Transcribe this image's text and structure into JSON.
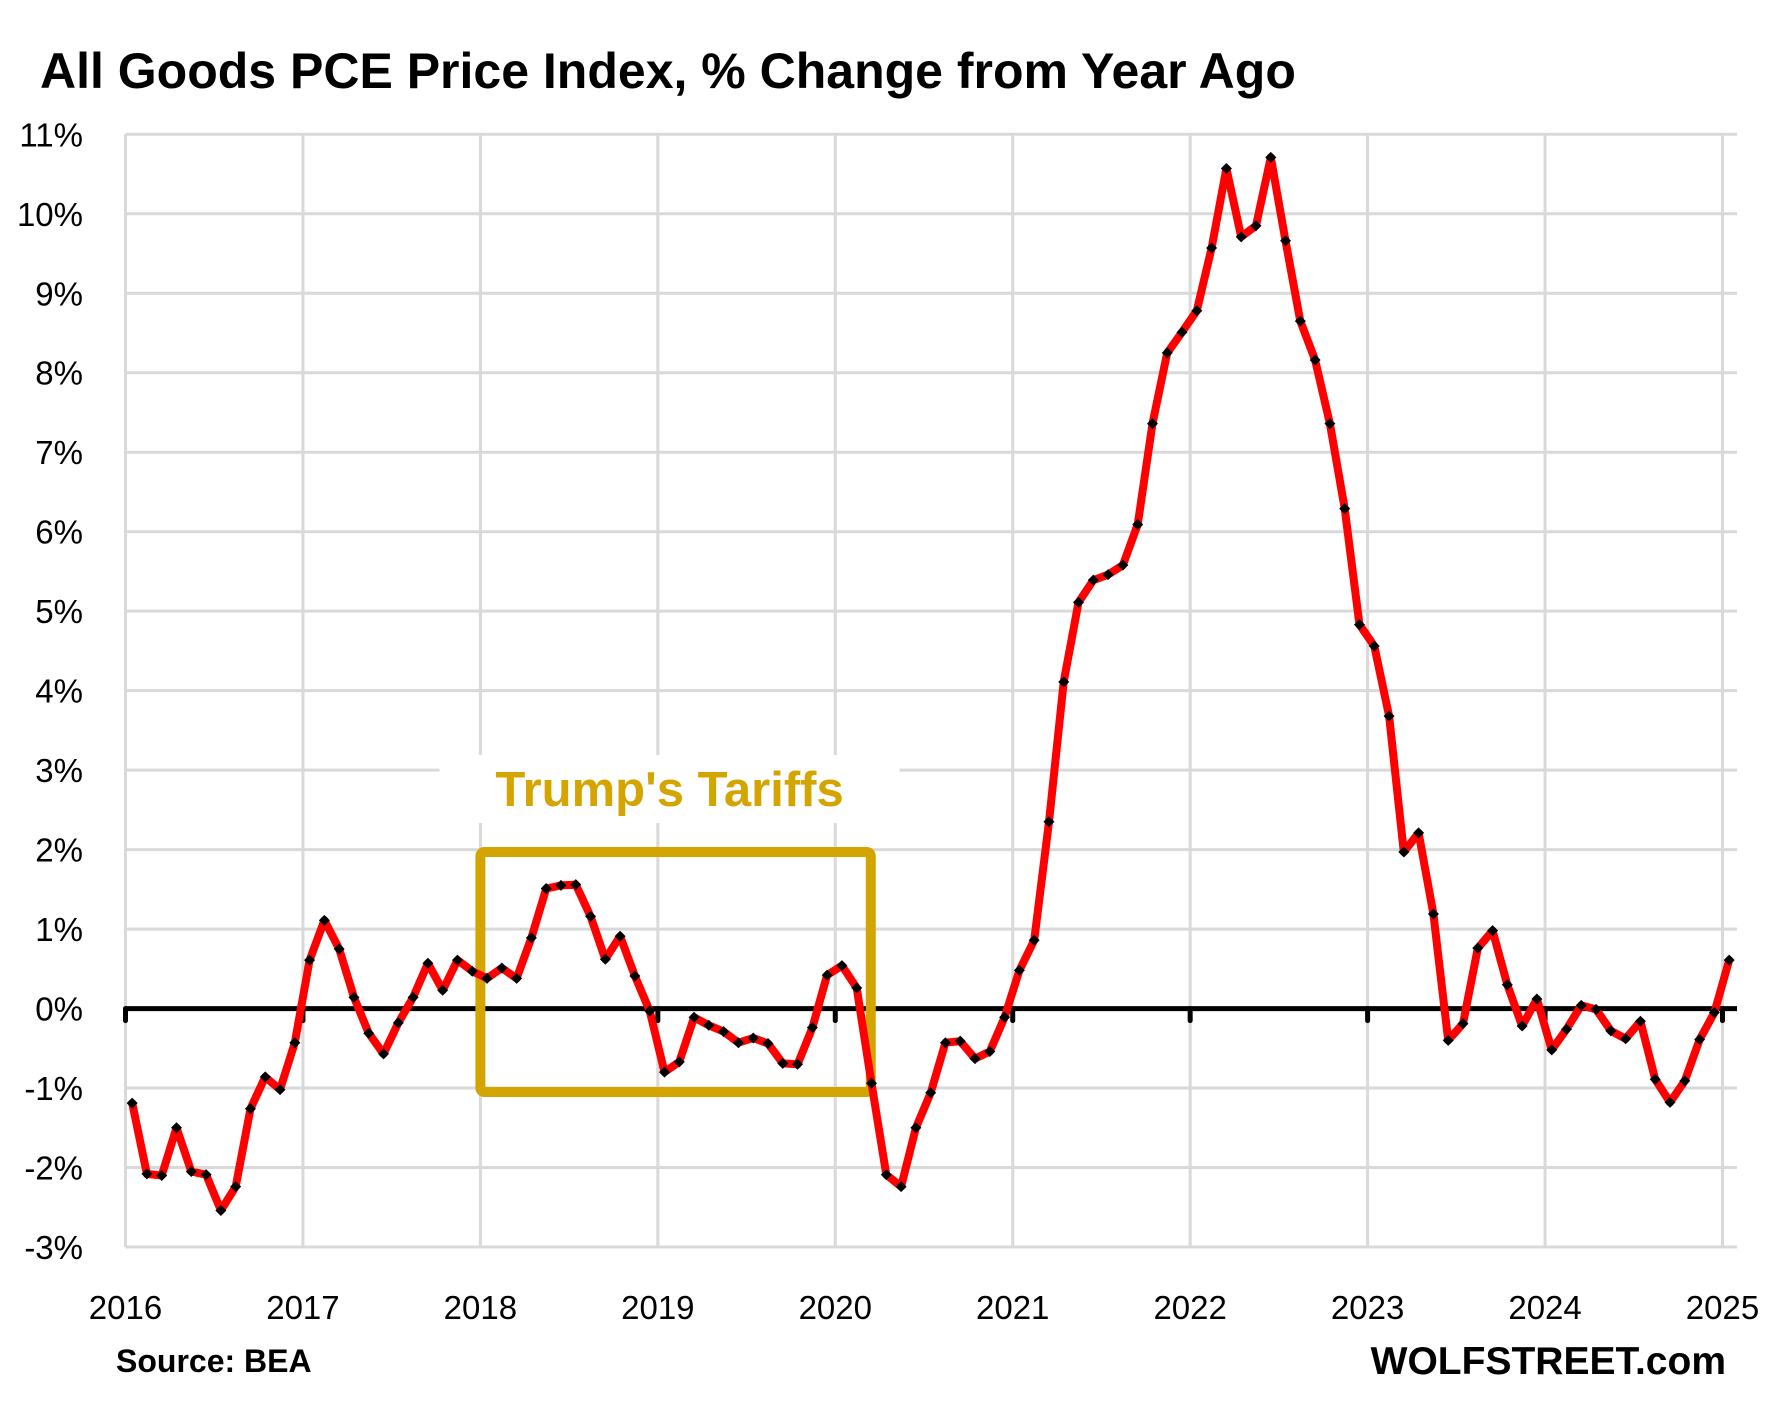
{
  "chart_data": {
    "type": "line",
    "title": "All Goods PCE Price Index, % Change from Year Ago",
    "xlabel": "",
    "ylabel": "",
    "ylim": [
      -3,
      11
    ],
    "xlim": [
      2016,
      2025
    ],
    "grid": true,
    "y_ticks": [
      "-3%",
      "-2%",
      "-1%",
      "0%",
      "1%",
      "2%",
      "3%",
      "4%",
      "5%",
      "6%",
      "7%",
      "8%",
      "9%",
      "10%",
      "11%"
    ],
    "y_tick_values": [
      -3,
      -2,
      -1,
      0,
      1,
      2,
      3,
      4,
      5,
      6,
      7,
      8,
      9,
      10,
      11
    ],
    "x_ticks": [
      "2016",
      "2017",
      "2018",
      "2019",
      "2020",
      "2021",
      "2022",
      "2023",
      "2024",
      "2025"
    ],
    "x_tick_values": [
      2016,
      2017,
      2018,
      2019,
      2020,
      2021,
      2022,
      2023,
      2024,
      2025
    ],
    "start": "2016-01",
    "frequency": "monthly",
    "series": [
      {
        "name": "All Goods PCE Price Index, % change YoY",
        "color": "#ff0000",
        "marker_color": "#000000",
        "values": [
          -1.19,
          -2.08,
          -2.1,
          -1.5,
          -2.05,
          -2.09,
          -2.54,
          -2.24,
          -1.26,
          -0.86,
          -1.02,
          -0.43,
          0.61,
          1.11,
          0.75,
          0.14,
          -0.31,
          -0.57,
          -0.18,
          0.14,
          0.57,
          0.23,
          0.61,
          0.47,
          0.38,
          0.51,
          0.38,
          0.89,
          1.51,
          1.55,
          1.56,
          1.16,
          0.62,
          0.91,
          0.41,
          -0.03,
          -0.8,
          -0.67,
          -0.11,
          -0.21,
          -0.29,
          -0.43,
          -0.37,
          -0.44,
          -0.69,
          -0.7,
          -0.24,
          0.42,
          0.54,
          0.26,
          -0.94,
          -2.09,
          -2.24,
          -1.5,
          -1.06,
          -0.43,
          -0.41,
          -0.63,
          -0.54,
          -0.11,
          0.48,
          0.86,
          2.35,
          4.11,
          5.11,
          5.39,
          5.46,
          5.58,
          6.09,
          7.36,
          8.25,
          8.51,
          8.78,
          9.57,
          10.57,
          9.71,
          9.85,
          10.71,
          9.66,
          8.65,
          8.16,
          7.36,
          6.29,
          4.83,
          4.56,
          3.68,
          1.97,
          2.21,
          1.19,
          -0.4,
          -0.19,
          0.76,
          0.98,
          0.3,
          -0.22,
          0.12,
          -0.52,
          -0.26,
          0.04,
          -0.01,
          -0.28,
          -0.38,
          -0.16,
          -0.89,
          -1.18,
          -0.91,
          -0.39,
          -0.05,
          0.61
        ]
      }
    ],
    "annotations": [
      {
        "text": "Trump's Tariffs",
        "color": "#d4a500",
        "box_x_range": [
          2018,
          2020.2
        ],
        "box_y_range": [
          -1.05,
          1.97
        ]
      }
    ],
    "zero_line": true
  },
  "footer": {
    "source": "Source: BEA",
    "brand": "WOLFSTREET.com"
  }
}
